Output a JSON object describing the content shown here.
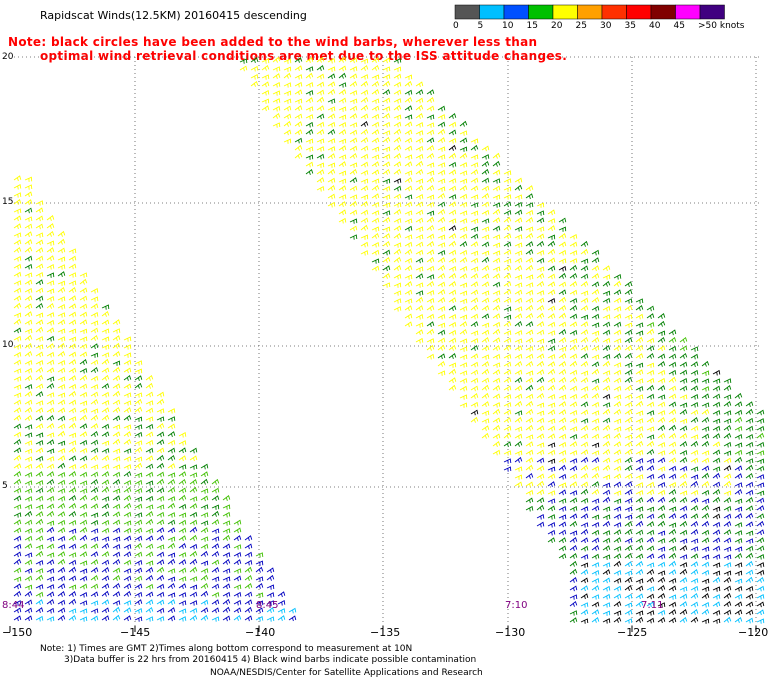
{
  "title": "Rapidscat Winds(12.5KM) 20160415 descending",
  "note_line1": "Note: black circles have been added to the wind barbs, wherever less than",
  "note_line2": "optimal wind retrieval conditions are met due to the ISS attitude changes.",
  "colorbar": {
    "labels": [
      "0",
      "5",
      "10",
      "15",
      "20",
      "25",
      "30",
      "35",
      "40",
      "45",
      ">50 knots"
    ],
    "colors": [
      "#555555",
      "#00bfff",
      "#0050ff",
      "#00c000",
      "#ffff00",
      "#ffa000",
      "#ff3000",
      "#ff0000",
      "#800000",
      "#ff00ff",
      "#400080"
    ]
  },
  "map": {
    "lat_labels": [
      "20",
      "15",
      "10",
      "5"
    ],
    "lon_labels": [
      "−150",
      "−145",
      "−140",
      "−135",
      "−130",
      "−125",
      "−120"
    ],
    "pass_times": [
      "8:44",
      "8:45",
      "7:10",
      "7:11"
    ],
    "colors": {
      "yellow": "#ffff00",
      "green": "#008000",
      "lightgreen": "#40c000",
      "blue": "#0000c0",
      "cyan": "#00c0ff",
      "black": "#000000"
    }
  },
  "footer": {
    "line1": "Note: 1) Times are GMT 2)Times along bottom correspond to measurement at 10N",
    "line2": "3)Data buffer is 22 hrs from 20160415 4) Black wind barbs indicate possible contamination",
    "line3": "NOAA/NESDIS/Center for Satellite Applications and Research"
  }
}
